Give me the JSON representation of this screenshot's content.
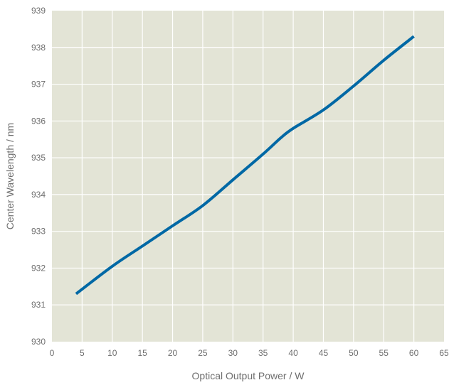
{
  "chart_data": {
    "type": "line",
    "title": "",
    "xlabel": "Optical Output Power / W",
    "ylabel": "Center Wavelength / nm",
    "xlim": [
      0,
      65
    ],
    "ylim": [
      930,
      939
    ],
    "xticks": [
      0,
      5,
      10,
      15,
      20,
      25,
      30,
      35,
      40,
      45,
      50,
      55,
      60,
      65
    ],
    "yticks": [
      930,
      931,
      932,
      933,
      934,
      935,
      936,
      937,
      938,
      939
    ],
    "grid": true,
    "legend": "none",
    "colors": {
      "plot_background": "#e3e4d6",
      "grid": "#ffffff",
      "line": "#0068a5",
      "text": "#6e6e6e"
    },
    "series": [
      {
        "x": [
          4,
          10,
          15,
          20,
          25,
          30,
          35,
          38,
          40,
          45,
          50,
          55,
          60
        ],
        "y": [
          931.3,
          932.05,
          932.6,
          933.15,
          933.7,
          934.4,
          935.1,
          935.55,
          935.8,
          936.3,
          936.95,
          937.65,
          938.3
        ]
      }
    ]
  }
}
